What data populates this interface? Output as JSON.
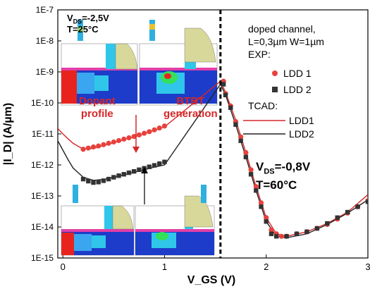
{
  "chart_data": {
    "type": "scatter",
    "ylabel": "|I_D| (A/µm)",
    "xlabel": "V_GS (V)",
    "y_scale": "log",
    "ylim": [
      1e-15,
      1e-07
    ],
    "xlim": [
      -0.05,
      3.0
    ],
    "x_ticks": [
      "0",
      "1",
      "2",
      "3"
    ],
    "y_ticks": [
      "1E-15",
      "1E-14",
      "1E-13",
      "1E-12",
      "1E-11",
      "1E-10",
      "1E-9",
      "1E-8",
      "1E-7"
    ],
    "vline_x": 1.55,
    "legend": {
      "header": [
        "doped channel,",
        "L=0,3µm W=1µm",
        "EXP:"
      ],
      "exp": [
        {
          "name": "LDD 1",
          "marker": "circle",
          "color": "#e8413c"
        },
        {
          "name": "LDD 2",
          "marker": "square",
          "color": "#333333"
        }
      ],
      "tcad_header": "TCAD:",
      "tcad": [
        {
          "name": "LDD1",
          "color": "#d62728"
        },
        {
          "name": "LDD2",
          "color": "#222222"
        }
      ]
    },
    "series": [
      {
        "name": "LDD 1",
        "kind": "exp",
        "marker": "circle",
        "color": "#e8413c",
        "x": [
          0.2,
          0.25,
          0.3,
          0.35,
          0.4,
          0.45,
          0.5,
          0.55,
          0.6,
          0.65,
          0.7,
          0.75,
          0.8,
          0.85,
          0.9,
          0.95,
          1.0,
          1.58,
          1.6,
          1.65,
          1.7,
          1.75,
          1.8,
          1.85,
          1.9,
          1.95,
          2.0,
          2.05,
          2.1,
          2.15,
          2.2,
          2.3,
          2.4,
          2.5,
          2.6,
          2.7,
          2.8,
          2.9,
          3.0
        ],
        "y": [
          3.2e-12,
          3.5e-12,
          3.8e-12,
          4.1e-12,
          4.5e-12,
          5e-12,
          5.5e-12,
          6.1e-12,
          6.8e-12,
          7.5e-12,
          8.3e-12,
          9.3e-12,
          1.05e-11,
          1.18e-11,
          1.35e-11,
          1.55e-11,
          1.8e-11,
          5e-10,
          2e-10,
          8e-11,
          2.5e-11,
          8e-12,
          2.5e-12,
          7e-13,
          2e-13,
          6e-14,
          2e-14,
          8e-15,
          6e-15,
          5e-15,
          5e-15,
          6e-15,
          7e-15,
          9e-15,
          1.2e-14,
          1.8e-14,
          2.8e-14,
          4.5e-14,
          7e-14
        ]
      },
      {
        "name": "LDD 2",
        "kind": "exp",
        "marker": "square",
        "color": "#333333",
        "x": [
          0.2,
          0.25,
          0.3,
          0.35,
          0.4,
          0.45,
          0.5,
          0.55,
          0.6,
          0.65,
          0.7,
          0.75,
          0.8,
          0.85,
          0.9,
          0.95,
          1.0,
          1.58,
          1.6,
          1.65,
          1.7,
          1.75,
          1.8,
          1.85,
          1.9,
          1.95,
          2.0,
          2.05,
          2.1,
          2.2,
          2.3,
          2.4,
          2.5,
          2.6,
          2.7,
          2.8,
          2.9,
          3.0
        ],
        "y": [
          3.5e-13,
          3e-13,
          2.7e-13,
          2.8e-13,
          3.1e-13,
          3.5e-13,
          4e-13,
          4.5e-13,
          5e-13,
          5.6e-13,
          6.2e-13,
          7e-13,
          7.8e-13,
          8.7e-13,
          9.7e-13,
          1.1e-12,
          1.25e-12,
          4e-10,
          1.8e-10,
          7e-11,
          2e-11,
          6e-12,
          1.8e-12,
          5e-13,
          1.5e-13,
          4.5e-14,
          1.5e-14,
          6e-15,
          5e-15,
          5e-15,
          6e-15,
          7e-15,
          9e-15,
          1.3e-14,
          2e-14,
          3e-14,
          4.5e-14,
          6.5e-14
        ]
      },
      {
        "name": "LDD1",
        "kind": "tcad",
        "color": "#d62728",
        "x": [
          -0.05,
          0.0,
          0.05,
          0.1,
          0.15,
          0.2,
          0.3,
          0.4,
          0.5,
          0.6,
          0.7,
          0.8,
          0.9,
          1.0,
          1.55,
          1.6,
          1.7,
          1.8,
          1.9,
          2.0,
          2.1,
          2.2,
          2.4,
          2.6,
          2.8,
          3.0
        ],
        "y": [
          1.5e-11,
          1e-11,
          7e-12,
          5e-12,
          4e-12,
          3.3e-12,
          3.4e-12,
          4.2e-12,
          5.2e-12,
          6.5e-12,
          8e-12,
          1e-11,
          1.3e-11,
          1.7e-11,
          5e-10,
          2.2e-10,
          2.8e-11,
          2.5e-12,
          2e-13,
          2e-14,
          6e-15,
          5e-15,
          7e-15,
          1.3e-14,
          3e-14,
          1.1e-13
        ]
      },
      {
        "name": "LDD2",
        "kind": "tcad",
        "color": "#222222",
        "x": [
          -0.05,
          0.0,
          0.05,
          0.1,
          0.2,
          0.3,
          0.4,
          0.5,
          0.6,
          0.7,
          0.8,
          0.9,
          1.0,
          1.55,
          1.6,
          1.7,
          1.8,
          1.9,
          2.0,
          2.1,
          2.2,
          2.4,
          2.6,
          2.8,
          3.0
        ],
        "y": [
          6e-12,
          3e-12,
          1.5e-12,
          8e-13,
          4e-13,
          3.2e-13,
          3.4e-13,
          4e-13,
          4.8e-13,
          5.8e-13,
          7e-13,
          8.5e-13,
          1e-12,
          4e-10,
          1.8e-10,
          2e-11,
          1.8e-12,
          1.5e-13,
          1.5e-14,
          5e-15,
          4.5e-15,
          6e-15,
          1.2e-14,
          2.8e-14,
          7.5e-14
        ]
      }
    ]
  },
  "annotations": {
    "vds_top_left_1": "V",
    "vds_top_left_sub": "DS",
    "vds_top_left_2": "=-2,5V",
    "temp_top_left": "T=25°C",
    "dopant_profile_1": "Dopant",
    "dopant_profile_2": "profile",
    "btbt_1": "BTBT",
    "btbt_2": "generation",
    "vds_main_1": "V",
    "vds_main_sub": "DS",
    "vds_main_2": "=-0,8V",
    "temp_main": "T=60°C"
  },
  "colors": {
    "ldd1": "#e8413c",
    "ldd2": "#333333",
    "tcad1": "#d62728",
    "tcad2": "#222222",
    "inset_blue": "#1d3cc9",
    "inset_cyan": "#2fc6ea",
    "inset_khaki": "#d8d89a"
  }
}
